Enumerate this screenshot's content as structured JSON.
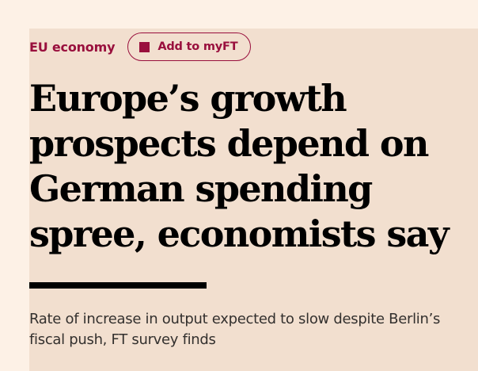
{
  "topic": {
    "label": "EU economy"
  },
  "follow_button": {
    "label": "Add to myFT",
    "icon": "square-icon"
  },
  "article": {
    "headline": "Europe’s growth prospects depend on German spending spree, economists say",
    "standfirst": "Rate of increase in output expected to slow despite Berlin’s fiscal push, FT survey finds"
  },
  "colors": {
    "page_background": "#fdf1e6",
    "panel_background": "#f2dfcf",
    "accent": "#990f3d",
    "headline": "#000000",
    "standfirst": "#33302e"
  }
}
